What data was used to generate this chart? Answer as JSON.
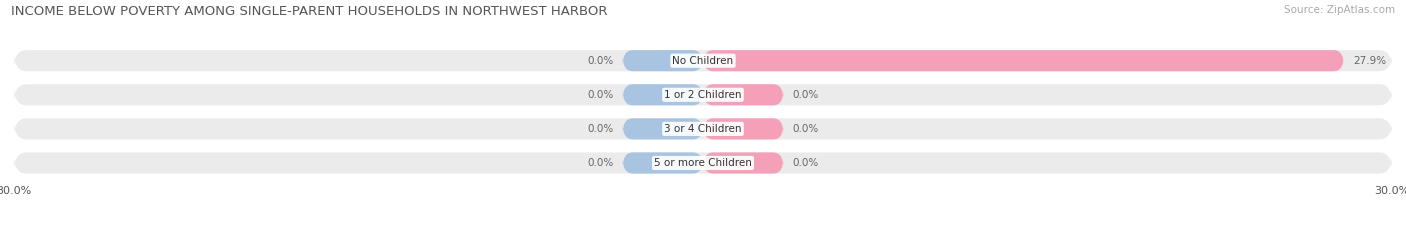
{
  "title": "INCOME BELOW POVERTY AMONG SINGLE-PARENT HOUSEHOLDS IN NORTHWEST HARBOR",
  "source": "Source: ZipAtlas.com",
  "categories": [
    "No Children",
    "1 or 2 Children",
    "3 or 4 Children",
    "5 or more Children"
  ],
  "single_father": [
    0.0,
    0.0,
    0.0,
    0.0
  ],
  "single_mother": [
    27.9,
    0.0,
    0.0,
    0.0
  ],
  "xlim": [
    -30.0,
    30.0
  ],
  "father_color": "#a8c4e0",
  "mother_color": "#f4a0b8",
  "bar_bg_color": "#ebebeb",
  "bar_height": 0.62,
  "min_bar_width": 3.5,
  "title_fontsize": 9.5,
  "source_fontsize": 7.5,
  "label_fontsize": 7.5,
  "category_fontsize": 7.5,
  "axis_label_fontsize": 8,
  "legend_fontsize": 8
}
